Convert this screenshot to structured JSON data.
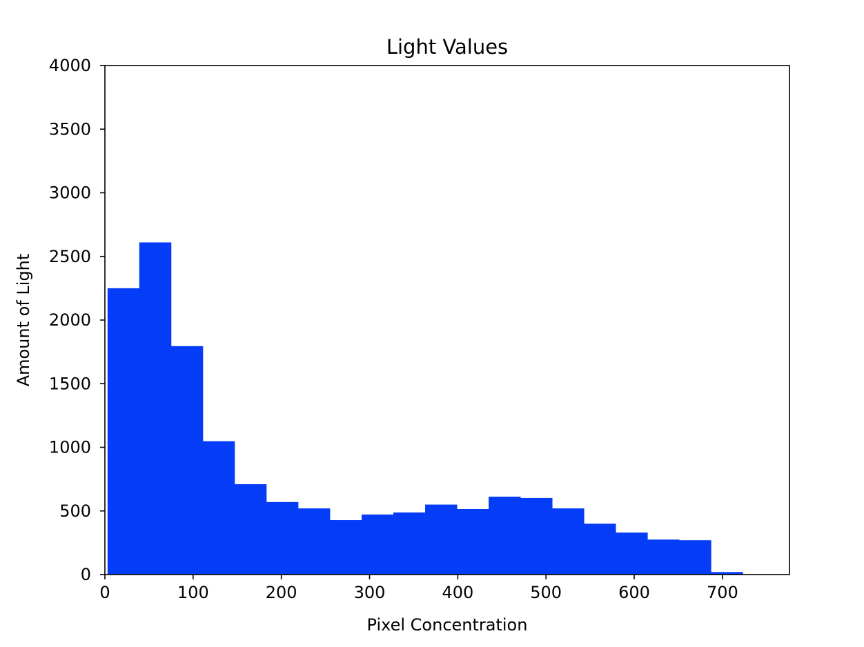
{
  "chart_data": {
    "type": "bar",
    "title": "Light Values",
    "xlabel": "Pixel Concentration",
    "ylabel": "Amount of Light",
    "xlim": [
      0,
      776
    ],
    "ylim": [
      0,
      4000
    ],
    "xticks": [
      0,
      100,
      200,
      300,
      400,
      500,
      600,
      700
    ],
    "yticks": [
      0,
      500,
      1000,
      1500,
      2000,
      2500,
      3000,
      3500,
      4000
    ],
    "grid": false,
    "bar_color": "#043cf7",
    "bin_edges": [
      3,
      39,
      75,
      111,
      147,
      183,
      219,
      255,
      291,
      327,
      363,
      399,
      435,
      471,
      507,
      543,
      579,
      615,
      651,
      687,
      723
    ],
    "values": [
      2250,
      2610,
      1795,
      1048,
      710,
      570,
      520,
      428,
      472,
      488,
      550,
      515,
      612,
      602,
      520,
      400,
      330,
      275,
      270,
      20
    ]
  }
}
